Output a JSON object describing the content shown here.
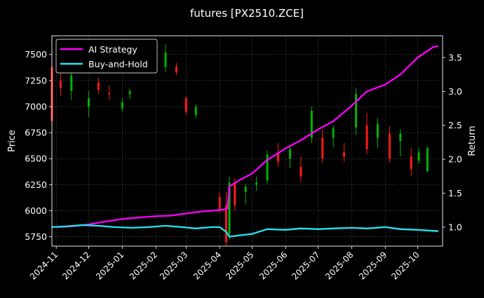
{
  "chart_data": {
    "type": "line",
    "title": "futures [PX2510.ZCE]",
    "xlabel": "",
    "ylabel": "Price",
    "ylabel_right": "Return",
    "x_range": [
      "2024-10-28",
      "2025-10-24"
    ],
    "ylim_left": [
      5660,
      7680
    ],
    "ylim_right": [
      0.72,
      3.82
    ],
    "grid": true,
    "legend_position": "top-left",
    "x_ticks": [
      "2024-11",
      "2024-12",
      "2025-01",
      "2025-02",
      "2025-03",
      "2025-04",
      "2025-05",
      "2025-06",
      "2025-07",
      "2025-08",
      "2025-09",
      "2025-10"
    ],
    "y_ticks_left": [
      5750,
      6000,
      6250,
      6500,
      6750,
      7000,
      7250,
      7500
    ],
    "y_ticks_right": [
      "1.0",
      "1.5",
      "2.0",
      "2.5",
      "3.0",
      "3.5"
    ],
    "y_ticks_right_values": [
      1.0,
      1.5,
      2.0,
      2.5,
      3.0,
      3.5
    ],
    "colors": {
      "background": "#000000",
      "up": "#00b300",
      "down": "#ff1a1a",
      "ai_strategy": "#ff00ff",
      "buy_and_hold": "#22e5f2",
      "grid": "#5a5a5a"
    },
    "series": [
      {
        "name": "AI Strategy",
        "color": "#ff00ff",
        "axis": "right",
        "x": [
          "2024-11-01",
          "2024-11-15",
          "2024-12-01",
          "2024-12-15",
          "2025-01-01",
          "2025-01-15",
          "2025-02-01",
          "2025-02-15",
          "2025-03-01",
          "2025-03-15",
          "2025-04-01",
          "2025-04-08",
          "2025-04-10",
          "2025-04-20",
          "2025-05-01",
          "2025-05-15",
          "2025-06-01",
          "2025-06-15",
          "2025-07-01",
          "2025-07-15",
          "2025-08-01",
          "2025-08-15",
          "2025-09-01",
          "2025-09-15",
          "2025-10-01",
          "2025-10-15",
          "2025-10-20"
        ],
        "values": [
          1.0,
          1.01,
          1.04,
          1.08,
          1.12,
          1.14,
          1.16,
          1.17,
          1.2,
          1.23,
          1.25,
          1.27,
          1.6,
          1.7,
          1.79,
          1.99,
          2.16,
          2.28,
          2.44,
          2.56,
          2.79,
          3.0,
          3.1,
          3.25,
          3.5,
          3.65,
          3.67
        ]
      },
      {
        "name": "Buy-and-Hold",
        "color": "#22e5f2",
        "axis": "right",
        "x": [
          "2024-10-28",
          "2024-11-10",
          "2024-11-25",
          "2024-12-10",
          "2024-12-25",
          "2025-01-10",
          "2025-01-25",
          "2025-02-10",
          "2025-02-25",
          "2025-03-10",
          "2025-03-25",
          "2025-04-01",
          "2025-04-07",
          "2025-04-10",
          "2025-04-20",
          "2025-05-01",
          "2025-05-15",
          "2025-06-01",
          "2025-06-15",
          "2025-07-01",
          "2025-07-15",
          "2025-08-01",
          "2025-08-15",
          "2025-09-01",
          "2025-09-15",
          "2025-10-01",
          "2025-10-10",
          "2025-10-20"
        ],
        "values": [
          1.0,
          1.01,
          1.03,
          1.02,
          1.0,
          0.99,
          1.0,
          1.02,
          1.0,
          0.98,
          1.0,
          1.0,
          0.93,
          0.86,
          0.88,
          0.9,
          0.97,
          0.96,
          0.98,
          0.97,
          0.98,
          0.99,
          0.98,
          1.0,
          0.97,
          0.96,
          0.95,
          0.94
        ]
      }
    ],
    "candles": {
      "axis": "left",
      "fields": [
        "date",
        "open",
        "high",
        "low",
        "close"
      ],
      "values": [
        [
          "2024-10-28",
          7380,
          7520,
          6720,
          6860
        ],
        [
          "2024-11-05",
          7250,
          7320,
          7100,
          7180
        ],
        [
          "2024-11-15",
          7150,
          7380,
          7060,
          7300
        ],
        [
          "2024-12-01",
          7000,
          7150,
          6900,
          7080
        ],
        [
          "2024-12-10",
          7230,
          7280,
          7120,
          7160
        ],
        [
          "2024-12-20",
          7130,
          7200,
          7060,
          7120
        ],
        [
          "2025-01-01",
          6980,
          7080,
          6950,
          7040
        ],
        [
          "2025-01-08",
          7120,
          7170,
          7070,
          7150
        ],
        [
          "2025-02-10",
          7380,
          7600,
          7330,
          7520
        ],
        [
          "2025-02-20",
          7380,
          7420,
          7300,
          7330
        ],
        [
          "2025-03-01",
          7080,
          7100,
          6920,
          6950
        ],
        [
          "2025-03-10",
          6920,
          7020,
          6890,
          7000
        ],
        [
          "2025-04-01",
          6130,
          6180,
          5980,
          6010
        ],
        [
          "2025-04-07",
          6050,
          6180,
          5660,
          5700
        ],
        [
          "2025-04-10",
          5780,
          6330,
          5720,
          6270
        ],
        [
          "2025-04-15",
          6270,
          6310,
          6000,
          6050
        ],
        [
          "2025-04-25",
          6180,
          6260,
          6060,
          6230
        ],
        [
          "2025-05-05",
          6250,
          6330,
          6190,
          6270
        ],
        [
          "2025-05-15",
          6290,
          6580,
          6260,
          6540
        ],
        [
          "2025-05-25",
          6560,
          6650,
          6420,
          6470
        ],
        [
          "2025-06-05",
          6500,
          6620,
          6410,
          6590
        ],
        [
          "2025-06-15",
          6420,
          6520,
          6270,
          6330
        ],
        [
          "2025-06-25",
          6700,
          7000,
          6650,
          6960
        ],
        [
          "2025-07-05",
          6700,
          6780,
          6460,
          6500
        ],
        [
          "2025-07-15",
          6700,
          6820,
          6610,
          6790
        ],
        [
          "2025-07-25",
          6560,
          6650,
          6470,
          6520
        ],
        [
          "2025-08-05",
          6800,
          7180,
          6730,
          7120
        ],
        [
          "2025-08-15",
          6820,
          6940,
          6540,
          6590
        ],
        [
          "2025-08-25",
          6700,
          6890,
          6600,
          6830
        ],
        [
          "2025-09-05",
          6740,
          6810,
          6460,
          6500
        ],
        [
          "2025-09-15",
          6670,
          6780,
          6520,
          6740
        ],
        [
          "2025-09-25",
          6520,
          6600,
          6330,
          6400
        ],
        [
          "2025-10-02",
          6480,
          6610,
          6450,
          6560
        ],
        [
          "2025-10-10",
          6380,
          6620,
          6370,
          6600
        ]
      ]
    }
  }
}
